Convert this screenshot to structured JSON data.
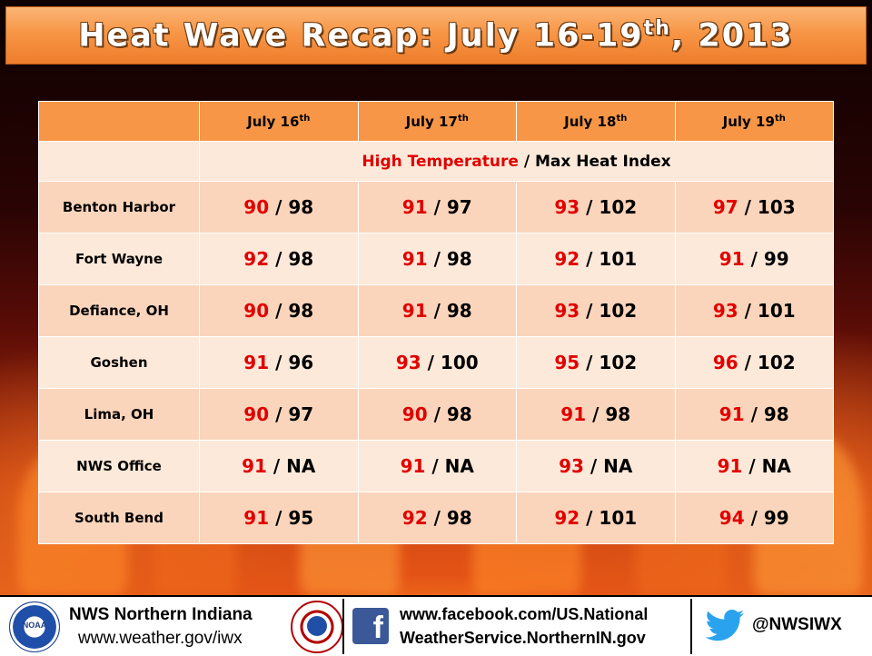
{
  "title": {
    "main": "Heat Wave Recap: July 16-19",
    "sup": "th",
    "suffix": ", 2013"
  },
  "table": {
    "columns": [
      {
        "main": "July 16",
        "sup": "th"
      },
      {
        "main": "July 17",
        "sup": "th"
      },
      {
        "main": "July 18",
        "sup": "th"
      },
      {
        "main": "July 19",
        "sup": "th"
      }
    ],
    "subheader": {
      "high_label": "High Temperature",
      "separator": " / ",
      "heat_label": "Max Heat Index"
    },
    "rows": [
      {
        "location": "Benton Harbor",
        "values": [
          [
            "90",
            "98"
          ],
          [
            "91",
            "97"
          ],
          [
            "93",
            "102"
          ],
          [
            "97",
            "103"
          ]
        ]
      },
      {
        "location": "Fort Wayne",
        "values": [
          [
            "92",
            "98"
          ],
          [
            "91",
            "98"
          ],
          [
            "92",
            "101"
          ],
          [
            "91",
            "99"
          ]
        ]
      },
      {
        "location": "Defiance, OH",
        "values": [
          [
            "90",
            "98"
          ],
          [
            "91",
            "98"
          ],
          [
            "93",
            "102"
          ],
          [
            "93",
            "101"
          ]
        ]
      },
      {
        "location": "Goshen",
        "values": [
          [
            "91",
            "96"
          ],
          [
            "93",
            "100"
          ],
          [
            "95",
            "102"
          ],
          [
            "96",
            "102"
          ]
        ]
      },
      {
        "location": "Lima, OH",
        "values": [
          [
            "90",
            "97"
          ],
          [
            "90",
            "98"
          ],
          [
            "91",
            "98"
          ],
          [
            "91",
            "98"
          ]
        ]
      },
      {
        "location": "NWS Office",
        "values": [
          [
            "91",
            "NA"
          ],
          [
            "91",
            "NA"
          ],
          [
            "93",
            "NA"
          ],
          [
            "91",
            "NA"
          ]
        ]
      },
      {
        "location": "South Bend",
        "values": [
          [
            "91",
            "95"
          ],
          [
            "92",
            "98"
          ],
          [
            "92",
            "101"
          ],
          [
            "94",
            "99"
          ]
        ]
      }
    ],
    "colors": {
      "header": "#f79646",
      "row_light": "#fde9d9",
      "row_dark": "#fbd5bb",
      "high_temp": "#e00000"
    }
  },
  "footer": {
    "noaa_logo_text": "NOAA",
    "office_name": "NWS Northern Indiana",
    "office_url": "www.weather.gov/iwx",
    "facebook_line1": "www.facebook.com/US.National",
    "facebook_line2": "WeatherService.NorthernIN.gov",
    "facebook_icon": "f",
    "twitter_handle": "@NWSIWX",
    "icons": [
      "noaa-logo",
      "nws-logo",
      "facebook-icon",
      "twitter-bird-icon"
    ]
  }
}
